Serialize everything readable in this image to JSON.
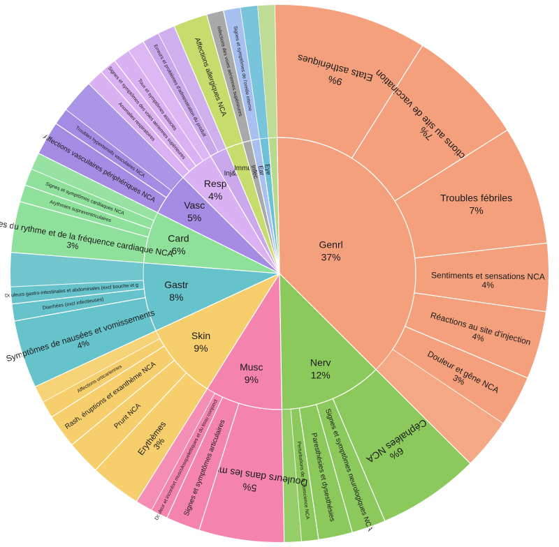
{
  "chart_data": {
    "type": "sunburst",
    "title": "",
    "unit": "%",
    "inner": [
      {
        "name": "Genrl",
        "value": 37,
        "color": "#F4A07C",
        "children": [
          {
            "name": "Etats asthéniques",
            "value": 9
          },
          {
            "name": "Réactions au site de vaccination",
            "value": 7
          },
          {
            "name": "Troubles fébriles",
            "value": 7
          },
          {
            "name": "Sentiments et sensations NCA",
            "value": 4
          },
          {
            "name": "Réactions au site d'injection",
            "value": 4
          },
          {
            "name": "Douleur et gêne NCA",
            "value": 3
          },
          {
            "name": "",
            "value": 3
          }
        ]
      },
      {
        "name": "Nerv",
        "value": 12,
        "color": "#8CC95C",
        "children": [
          {
            "name": "Céphalées NCA",
            "value": 6
          },
          {
            "name": "Signes et symptômes neurologiques NCA",
            "value": 2
          },
          {
            "name": "Paresthésies et dysesthésies",
            "value": 2
          },
          {
            "name": "Perturbations de la conscience NCA",
            "value": 1
          },
          {
            "name": "",
            "value": 1
          }
        ]
      },
      {
        "name": "Musc",
        "value": 9,
        "color": "#F484AE",
        "children": [
          {
            "name": "Douleurs dans les muscles",
            "value": 5
          },
          {
            "name": "Signes et symptômes articulaires",
            "value": 2
          },
          {
            "name": "Douleur et inconfort musculosquelettiques et du tissu conjonct",
            "value": 1
          },
          {
            "name": "",
            "value": 1
          }
        ]
      },
      {
        "name": "Skin",
        "value": 9,
        "color": "#F6CF6C",
        "children": [
          {
            "name": "Erythèmes",
            "value": 3
          },
          {
            "name": "Prurit NCA",
            "value": 2
          },
          {
            "name": "Rash, éruptions et exanthème NCA",
            "value": 2
          },
          {
            "name": "Affections urticariennes",
            "value": 1
          },
          {
            "name": "",
            "value": 1
          }
        ]
      },
      {
        "name": "Gastr",
        "value": 8,
        "color": "#66C2CB",
        "children": [
          {
            "name": "Symptômes de nausées et vomissements",
            "value": 4
          },
          {
            "name": "Diarrhées (excl infectieuses)",
            "value": 1
          },
          {
            "name": "Douleurs gastro-intestinales et abdominales (excl bouche et g",
            "value": 1
          },
          {
            "name": "",
            "value": 2
          }
        ]
      },
      {
        "name": "Card",
        "value": 6,
        "color": "#8EE09A",
        "children": [
          {
            "name": "Troubles du rythme et de la fréquence cardiaque NCA",
            "value": 3
          },
          {
            "name": "Arythmies supraventriculaires",
            "value": 1
          },
          {
            "name": "Signes et symptômes cardiaques NCA",
            "value": 1
          },
          {
            "name": "",
            "value": 1
          }
        ]
      },
      {
        "name": "Vasc",
        "value": 5,
        "color": "#A48CE4",
        "children": [
          {
            "name": "Affections vasculaires périphériques NCA",
            "value": 2
          },
          {
            "name": "Troubles hypertensifs vasculaires NCA",
            "value": 1
          },
          {
            "name": "",
            "value": 2
          }
        ]
      },
      {
        "name": "Resp",
        "value": 4,
        "color": "#DAB1F2",
        "children": [
          {
            "name": "Anomalies respiratoires",
            "value": 1
          },
          {
            "name": "Signes et symptômes des voies aériennes supérieures",
            "value": 1
          },
          {
            "name": "Toux et symptômes associés",
            "value": 1
          },
          {
            "name": "",
            "value": 1
          }
        ]
      },
      {
        "name": "Inj&P",
        "value": 2,
        "color": "#CBA8EC",
        "children": [
          {
            "name": "Erreurs et problèmes d'administration du produit",
            "value": 1
          },
          {
            "name": "",
            "value": 1
          }
        ]
      },
      {
        "name": "Immun",
        "value": 2,
        "color": "#C6DD6E",
        "children": [
          {
            "name": "Affections allergiques NCA",
            "value": 2
          }
        ]
      },
      {
        "name": "Infec",
        "value": 1,
        "color": "#A9A9A9",
        "children": [
          {
            "name": "Infections des voies aériennes supérieures",
            "value": 1
          }
        ]
      },
      {
        "name": "Ear",
        "value": 1,
        "color": "#A8C0F0",
        "children": [
          {
            "name": "Signes et symptômes de l'oreille interne",
            "value": 1
          }
        ]
      },
      {
        "name": "Eye",
        "value": 1,
        "color": "#6CC0D8",
        "children": [
          {
            "name": "",
            "value": 1
          }
        ]
      },
      {
        "name": "",
        "value": 1,
        "color": "#B8D98C",
        "children": [
          {
            "name": "",
            "value": 1
          }
        ]
      }
    ]
  }
}
